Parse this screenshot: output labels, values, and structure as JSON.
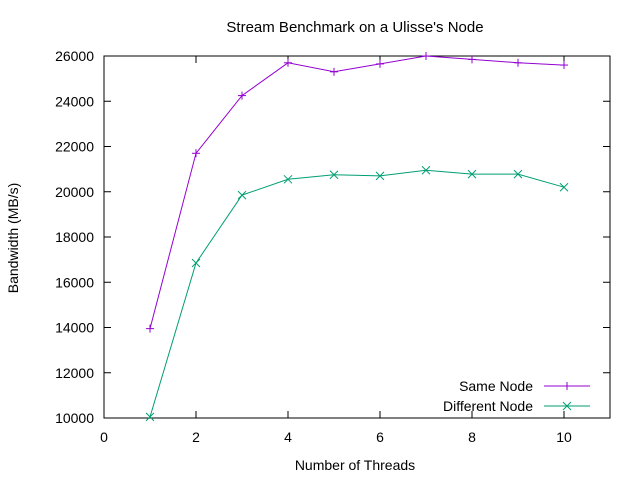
{
  "chart_data": {
    "type": "line",
    "title": "Stream Benchmark on a Ulisse's Node",
    "xlabel": "Number of Threads",
    "ylabel": "Bandwidth (MB/s)",
    "xlim": [
      0,
      11
    ],
    "ylim": [
      10000,
      26000
    ],
    "xticks": [
      0,
      2,
      4,
      6,
      8,
      10
    ],
    "yticks": [
      10000,
      12000,
      14000,
      16000,
      18000,
      20000,
      22000,
      24000,
      26000
    ],
    "grid": false,
    "legend_position": "bottom-right",
    "x": [
      1,
      2,
      3,
      4,
      5,
      6,
      7,
      8,
      9,
      10
    ],
    "series": [
      {
        "name": "Same Node",
        "color": "#9400d3",
        "marker": "plus",
        "values": [
          13950,
          21700,
          24250,
          25700,
          25300,
          25650,
          26000,
          25850,
          25700,
          25600
        ]
      },
      {
        "name": "Different Node",
        "color": "#009e73",
        "marker": "cross",
        "values": [
          10050,
          16850,
          19850,
          20550,
          20750,
          20700,
          20950,
          20780,
          20780,
          20200
        ]
      }
    ]
  }
}
